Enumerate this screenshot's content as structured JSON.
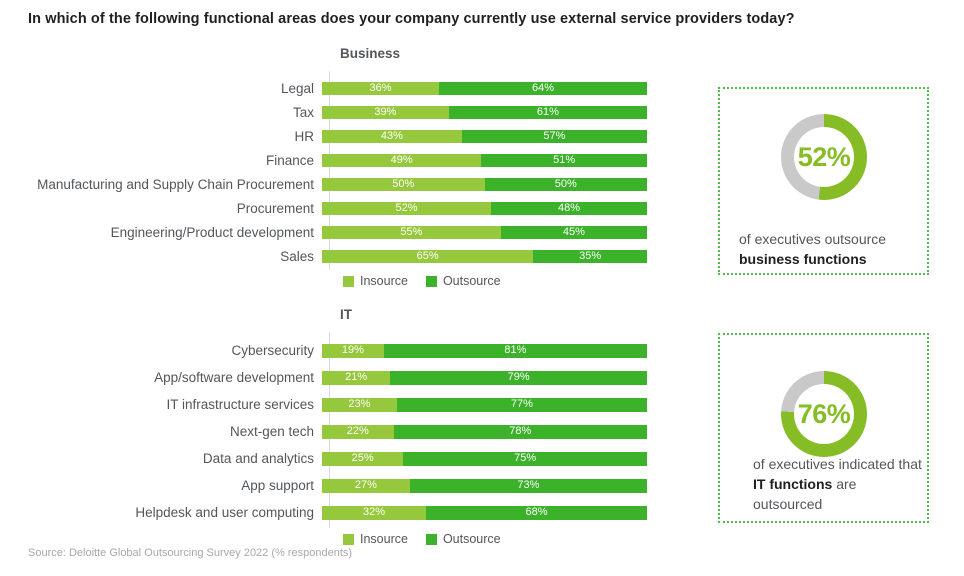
{
  "title": "In which of the following functional areas does your company currently use external service providers today?",
  "source": "Source: Deloitte Global Outsourcing Survey 2022 (% respondents)",
  "colors": {
    "insource": "#96C83D",
    "outsource": "#3CB22A",
    "donut_green": "#86BC25",
    "donut_gray": "#C9C9C9",
    "box_border": "#52B94B",
    "text_dark": "#1D1F20",
    "text_gray": "#53565A",
    "source_gray": "#A7A8AA"
  },
  "chart_data": [
    {
      "id": "business",
      "type": "bar",
      "orientation": "horizontal-stacked",
      "title": "Business",
      "value_suffix": "%",
      "xlim": [
        0,
        100
      ],
      "grid": false,
      "legend_position": "bottom",
      "categories": [
        "Legal",
        "Tax",
        "HR",
        "Finance",
        "Manufacturing and Supply Chain Procurement",
        "Procurement",
        "Engineering/Product development",
        "Sales"
      ],
      "series": [
        {
          "name": "Insource",
          "color": "#96C83D",
          "values": [
            36,
            39,
            43,
            49,
            50,
            52,
            55,
            65
          ]
        },
        {
          "name": "Outsource",
          "color": "#3CB22A",
          "values": [
            64,
            61,
            57,
            51,
            50,
            48,
            45,
            35
          ]
        }
      ]
    },
    {
      "id": "it",
      "type": "bar",
      "orientation": "horizontal-stacked",
      "title": "IT",
      "value_suffix": "%",
      "xlim": [
        0,
        100
      ],
      "grid": false,
      "legend_position": "bottom",
      "categories": [
        "Cybersecurity",
        "App/software development",
        "IT infrastructure services",
        "Next-gen tech",
        "Data and analytics",
        "App support",
        "Helpdesk and user computing"
      ],
      "series": [
        {
          "name": "Insource",
          "color": "#96C83D",
          "values": [
            19,
            21,
            23,
            22,
            25,
            27,
            32
          ]
        },
        {
          "name": "Outsource",
          "color": "#3CB22A",
          "values": [
            81,
            79,
            77,
            78,
            75,
            73,
            68
          ]
        }
      ]
    },
    {
      "id": "donut-business",
      "type": "pie",
      "subtype": "donut",
      "value": 52,
      "label": "52%",
      "slices": [
        {
          "name": "outsourced",
          "value": 52,
          "color": "#86BC25"
        },
        {
          "name": "remainder",
          "value": 48,
          "color": "#C9C9C9"
        }
      ],
      "caption_segments": [
        {
          "text": "of executives outsource ",
          "bold": false
        },
        {
          "text": "business functions",
          "bold": true
        }
      ]
    },
    {
      "id": "donut-it",
      "type": "pie",
      "subtype": "donut",
      "value": 76,
      "label": "76%",
      "slices": [
        {
          "name": "outsourced",
          "value": 76,
          "color": "#86BC25"
        },
        {
          "name": "remainder",
          "value": 24,
          "color": "#C9C9C9"
        }
      ],
      "caption_segments": [
        {
          "text": "of executives indicated that ",
          "bold": false
        },
        {
          "text": "IT functions",
          "bold": true
        },
        {
          "text": " are outsourced",
          "bold": false
        }
      ]
    }
  ]
}
